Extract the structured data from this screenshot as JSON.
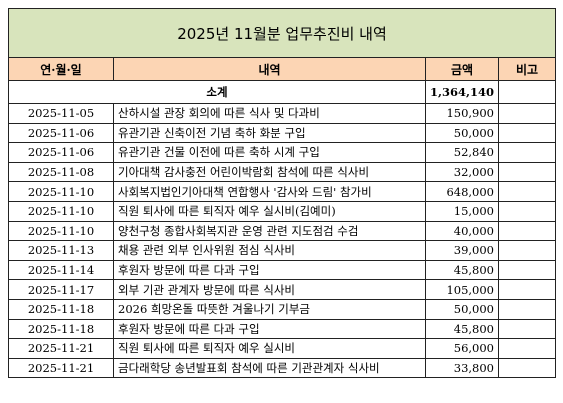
{
  "title": "2025년 11월분 업무추진비 내역",
  "header": [
    "연·월·일",
    "내역",
    "금액",
    "비고"
  ],
  "subtotal": {
    "label": "소계",
    "amount": "1,364,140"
  },
  "rows": [
    [
      "2025-11-05",
      "산하시설 관장 회의에 따른 식사 및 다과비",
      "150,900"
    ],
    [
      "2025-11-06",
      "유관기관 신축이전 기념 축하 화분 구입",
      "50,000"
    ],
    [
      "2025-11-06",
      "유관기관 건물 이전에 따른 축하 시계 구입",
      "52,840"
    ],
    [
      "2025-11-08",
      "기아대책 감사충전 어린이박람회 참석에 따른 식사비",
      "32,000"
    ],
    [
      "2025-11-10",
      "사회복지법인기아대책 연합행사 '감사와 드림' 참가비",
      "648,000"
    ],
    [
      "2025-11-10",
      "직원 퇴사에 따른 퇴직자 예우 실시비(김예미)",
      "15,000"
    ],
    [
      "2025-11-10",
      "양천구청 종합사회복지관 운영 관련 지도점검 수검",
      "40,000"
    ],
    [
      "2025-11-13",
      "채용 관련 외부 인사위원 점심 식사비",
      "39,000"
    ],
    [
      "2025-11-14",
      "후원자 방문에 따른 다과 구입",
      "45,800"
    ],
    [
      "2025-11-17",
      "외부 기관 관계자 방문에 따른 식사비",
      "105,000"
    ],
    [
      "2025-11-18",
      "2026 희망온돌 따뜻한 겨울나기 기부금",
      "50,000"
    ],
    [
      "2025-11-18",
      "후원자 방문에 따른 다과 구입",
      "45,800"
    ],
    [
      "2025-11-21",
      "직원 퇴사에 따른 퇴직자 예우 실시비",
      "56,000"
    ],
    [
      "2025-11-21",
      "금다래학당 송년발표회 참석에 따른 기관관계자 식사비",
      "33,800"
    ]
  ]
}
